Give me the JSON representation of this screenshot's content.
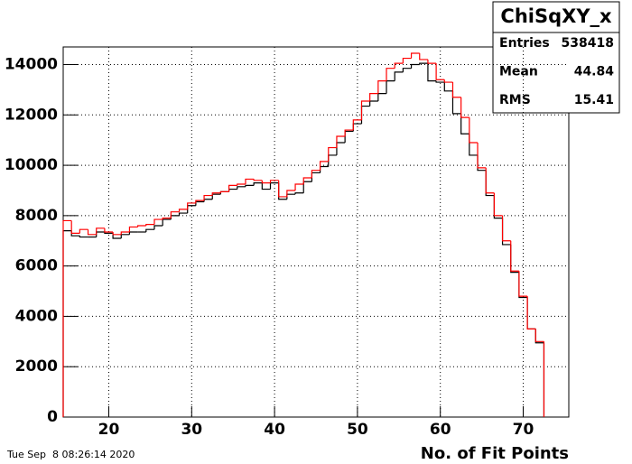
{
  "chart_data": {
    "type": "histogram",
    "title": "ChiSqXY_x",
    "xlabel": "No. of Fit Points",
    "bins": [
      14.5,
      15.5,
      16.5,
      17.5,
      18.5,
      19.5,
      20.5,
      21.5,
      22.5,
      23.5,
      24.5,
      25.5,
      26.5,
      27.5,
      28.5,
      29.5,
      30.5,
      31.5,
      32.5,
      33.5,
      34.5,
      35.5,
      36.5,
      37.5,
      38.5,
      39.5,
      40.5,
      41.5,
      42.5,
      43.5,
      44.5,
      45.5,
      46.5,
      47.5,
      48.5,
      49.5,
      50.5,
      51.5,
      52.5,
      53.5,
      54.5,
      55.5,
      56.5,
      57.5,
      58.5,
      59.5,
      60.5,
      61.5,
      62.5,
      63.5,
      64.5,
      65.5,
      66.5,
      67.5,
      68.5,
      69.5,
      70.5,
      71.5,
      72.5
    ],
    "series": [
      {
        "color": "#000000",
        "values": [
          7400,
          7200,
          7150,
          7150,
          7350,
          7300,
          7100,
          7250,
          7350,
          7350,
          7450,
          7600,
          7850,
          8000,
          8100,
          8400,
          8550,
          8650,
          8850,
          8950,
          9050,
          9150,
          9200,
          9300,
          9050,
          9300,
          8650,
          8850,
          8900,
          9350,
          9700,
          9950,
          10400,
          10900,
          11350,
          11650,
          12350,
          12550,
          12850,
          13350,
          13700,
          13850,
          14000,
          14050,
          13350,
          13300,
          12950,
          12050,
          11250,
          10400,
          9800,
          8800,
          7900,
          6850,
          5750,
          4750,
          3500,
          2950
        ]
      },
      {
        "color": "#ff0000",
        "values": [
          7800,
          7300,
          7450,
          7250,
          7500,
          7350,
          7250,
          7350,
          7550,
          7600,
          7650,
          7850,
          7900,
          8150,
          8250,
          8500,
          8600,
          8800,
          8900,
          8950,
          9200,
          9250,
          9450,
          9400,
          9300,
          9400,
          8750,
          9000,
          9250,
          9500,
          9800,
          10150,
          10700,
          11150,
          11400,
          11800,
          12550,
          12850,
          13350,
          13850,
          14050,
          14250,
          14450,
          14200,
          14050,
          13400,
          13300,
          12700,
          11900,
          10900,
          9900,
          8900,
          8000,
          7000,
          5800,
          4800,
          3500,
          3000
        ]
      }
    ],
    "xlim": [
      14.5,
      75.5
    ],
    "xticks": [
      20,
      30,
      40,
      50,
      60,
      70
    ],
    "ylim": [
      0,
      14700
    ],
    "yticks": [
      0,
      2000,
      4000,
      6000,
      8000,
      10000,
      12000,
      14000
    ],
    "grid": true,
    "stats": [
      {
        "label": "Entries",
        "value": 538418
      },
      {
        "label": "Mean",
        "value": 44.84
      },
      {
        "label": "RMS",
        "value": 15.41
      }
    ]
  },
  "footer": "Tue Sep  8 08:26:14 2020"
}
